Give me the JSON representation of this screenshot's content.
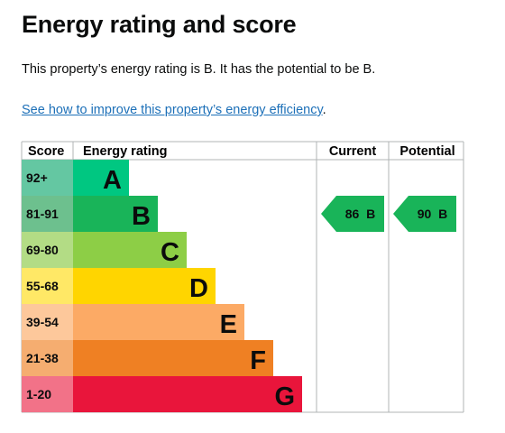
{
  "heading": "Energy rating and score",
  "summary": "This property’s energy rating is B. It has the potential to be B.",
  "link": {
    "text": "See how to improve this property’s energy efficiency",
    "trailing": "."
  },
  "chart_data": {
    "type": "bar",
    "headers": {
      "score": "Score",
      "rating": "Energy rating",
      "current": "Current",
      "potential": "Potential"
    },
    "bands": [
      {
        "score": "92+",
        "letter": "A",
        "color": "#00c781",
        "score_bg": "#64c7a2"
      },
      {
        "score": "81-91",
        "letter": "B",
        "color": "#19b459",
        "score_bg": "#6dc08e"
      },
      {
        "score": "69-80",
        "letter": "C",
        "color": "#8dce46",
        "score_bg": "#b3dc85"
      },
      {
        "score": "55-68",
        "letter": "D",
        "color": "#ffd500",
        "score_bg": "#ffe866"
      },
      {
        "score": "39-54",
        "letter": "E",
        "color": "#fcaa65",
        "score_bg": "#fdc89b"
      },
      {
        "score": "21-38",
        "letter": "F",
        "color": "#ef8023",
        "score_bg": "#f5ad70"
      },
      {
        "score": "1-20",
        "letter": "G",
        "color": "#e9153b",
        "score_bg": "#f27288"
      }
    ],
    "current": {
      "value": 86,
      "letter": "B",
      "label": "86  B",
      "color": "#19b459"
    },
    "potential": {
      "value": 90,
      "letter": "B",
      "label": "90  B",
      "color": "#19b459"
    }
  }
}
